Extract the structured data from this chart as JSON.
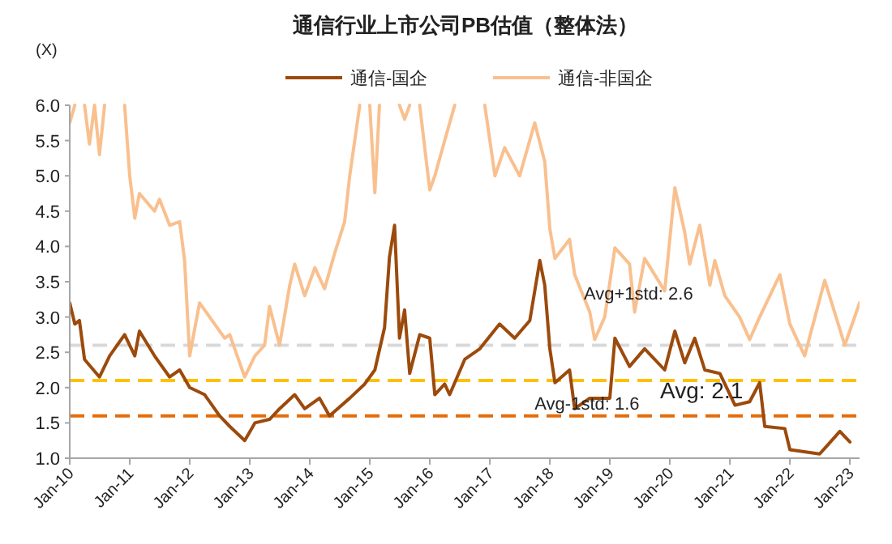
{
  "chart_data": {
    "type": "line",
    "title": "通信行业上市公司PB估值（整体法）",
    "ylabel": "(X)",
    "legend": "top",
    "xlim": [
      "2010-01",
      "2023-03"
    ],
    "xticks": [
      {
        "value": "2010-01",
        "label": "Jan-10"
      },
      {
        "value": "2011-01",
        "label": "Jan-11"
      },
      {
        "value": "2012-01",
        "label": "Jan-12"
      },
      {
        "value": "2013-01",
        "label": "Jan-13"
      },
      {
        "value": "2014-01",
        "label": "Jan-14"
      },
      {
        "value": "2015-01",
        "label": "Jan-15"
      },
      {
        "value": "2016-01",
        "label": "Jan-16"
      },
      {
        "value": "2017-01",
        "label": "Jan-17"
      },
      {
        "value": "2018-01",
        "label": "Jan-18"
      },
      {
        "value": "2019-01",
        "label": "Jan-19"
      },
      {
        "value": "2020-01",
        "label": "Jan-20"
      },
      {
        "value": "2021-01",
        "label": "Jan-21"
      },
      {
        "value": "2022-01",
        "label": "Jan-22"
      },
      {
        "value": "2023-01",
        "label": "Jan-23"
      }
    ],
    "ylim": [
      1,
      6
    ],
    "yticks": [
      {
        "value": 1,
        "label": "1.0"
      },
      {
        "value": 1.5,
        "label": "1.5"
      },
      {
        "value": 2,
        "label": "2.0"
      },
      {
        "value": 2.5,
        "label": "2.5"
      },
      {
        "value": 3,
        "label": "3.0"
      },
      {
        "value": 3.5,
        "label": "3.5"
      },
      {
        "value": 4,
        "label": "4.0"
      },
      {
        "value": 4.5,
        "label": "4.5"
      },
      {
        "value": 5,
        "label": "5.0"
      },
      {
        "value": 5.5,
        "label": "5.5"
      },
      {
        "value": 6,
        "label": "6.0"
      }
    ],
    "ref_lines": [
      {
        "axis": "y",
        "value": 2.6,
        "label": "Avg+1std: 2.6",
        "color": "#d9d9d9",
        "line_style": "dashed"
      },
      {
        "axis": "y",
        "value": 2.1,
        "label": "Avg: 2.1",
        "color": "#ffc000",
        "line_style": "dashed"
      },
      {
        "axis": "y",
        "value": 1.6,
        "label": "Avg-1std: 1.6",
        "color": "#e46c0a",
        "line_style": "dashed"
      }
    ],
    "series": [
      {
        "name": "通信-国企",
        "color": "#9c4a0c",
        "x": [
          "2010-01",
          "2010-02",
          "2010-03",
          "2010-04",
          "2010-07",
          "2010-09",
          "2010-12",
          "2011-02",
          "2011-03",
          "2011-06",
          "2011-09",
          "2011-11",
          "2012-01",
          "2012-04",
          "2012-07",
          "2012-09",
          "2012-12",
          "2013-02",
          "2013-05",
          "2013-07",
          "2013-10",
          "2013-12",
          "2014-03",
          "2014-05",
          "2014-09",
          "2014-12",
          "2015-02",
          "2015-04",
          "2015-05",
          "2015-06",
          "2015-07",
          "2015-08",
          "2015-09",
          "2015-11",
          "2016-01",
          "2016-02",
          "2016-04",
          "2016-05",
          "2016-08",
          "2016-11",
          "2017-03",
          "2017-06",
          "2017-09",
          "2017-11",
          "2017-12",
          "2018-01",
          "2018-02",
          "2018-05",
          "2018-06",
          "2018-09",
          "2019-01",
          "2019-02",
          "2019-05",
          "2019-08",
          "2019-12",
          "2020-02",
          "2020-04",
          "2020-06",
          "2020-08",
          "2020-11",
          "2021-02",
          "2021-05",
          "2021-07",
          "2021-08",
          "2021-12",
          "2022-01",
          "2022-07",
          "2022-11",
          "2023-01"
        ],
        "values": [
          3.2,
          2.9,
          2.95,
          2.4,
          2.15,
          2.45,
          2.75,
          2.45,
          2.8,
          2.45,
          2.15,
          2.25,
          2.0,
          1.9,
          1.6,
          1.45,
          1.25,
          1.5,
          1.55,
          1.7,
          1.9,
          1.7,
          1.85,
          1.6,
          1.85,
          2.05,
          2.25,
          2.85,
          3.85,
          4.3,
          2.7,
          3.1,
          2.2,
          2.75,
          2.7,
          1.9,
          2.05,
          1.9,
          2.4,
          2.55,
          2.9,
          2.7,
          2.95,
          3.8,
          3.45,
          2.55,
          2.07,
          2.25,
          1.7,
          1.85,
          1.85,
          2.7,
          2.3,
          2.55,
          2.25,
          2.8,
          2.35,
          2.7,
          2.25,
          2.2,
          1.75,
          1.8,
          2.07,
          1.45,
          1.42,
          1.12,
          1.06,
          1.38,
          1.23
        ]
      },
      {
        "name": "通信-非国企",
        "color": "#f9c08f",
        "x": [
          "2010-01",
          "2010-02",
          "2010-03",
          "2010-04",
          "2010-05",
          "2010-06",
          "2010-07",
          "2010-08",
          "2010-10",
          "2010-12",
          "2011-01",
          "2011-02",
          "2011-03",
          "2011-06",
          "2011-07",
          "2011-09",
          "2011-11",
          "2011-12",
          "2012-01",
          "2012-03",
          "2012-06",
          "2012-08",
          "2012-09",
          "2012-10",
          "2012-12",
          "2013-02",
          "2013-04",
          "2013-05",
          "2013-07",
          "2013-09",
          "2013-10",
          "2013-12",
          "2014-02",
          "2014-04",
          "2014-06",
          "2014-08",
          "2014-09",
          "2014-11",
          "2014-12",
          "2015-01",
          "2015-02",
          "2015-03",
          "2015-04",
          "2015-07",
          "2015-08",
          "2015-09",
          "2015-10",
          "2015-11",
          "2016-01",
          "2016-02",
          "2016-04",
          "2016-06",
          "2016-07",
          "2016-10",
          "2016-12",
          "2017-02",
          "2017-04",
          "2017-07",
          "2017-10",
          "2017-12",
          "2018-01",
          "2018-02",
          "2018-05",
          "2018-06",
          "2018-09",
          "2018-10",
          "2018-12",
          "2019-02",
          "2019-05",
          "2019-06",
          "2019-08",
          "2019-12",
          "2020-02",
          "2020-04",
          "2020-05",
          "2020-07",
          "2020-09",
          "2020-10",
          "2020-12",
          "2021-03",
          "2021-05",
          "2021-07",
          "2021-11",
          "2022-01",
          "2022-04",
          "2022-08",
          "2022-12",
          "2023-03"
        ],
        "values": [
          5.75,
          6.0,
          null,
          6.0,
          5.45,
          6.0,
          5.3,
          6.0,
          null,
          6.0,
          5.0,
          4.4,
          4.75,
          4.5,
          4.67,
          4.3,
          4.35,
          3.8,
          2.45,
          3.2,
          2.9,
          2.7,
          2.75,
          2.55,
          2.15,
          2.45,
          2.6,
          3.15,
          2.6,
          3.45,
          3.75,
          3.3,
          3.7,
          3.4,
          3.9,
          4.35,
          5.0,
          6.0,
          null,
          6.0,
          4.76,
          6.0,
          null,
          6.0,
          5.8,
          6.0,
          null,
          6.0,
          4.8,
          5.0,
          5.5,
          6.0,
          null,
          null,
          6.0,
          5.0,
          5.4,
          5.0,
          5.75,
          5.2,
          4.25,
          3.83,
          4.1,
          3.6,
          3.07,
          2.68,
          3.0,
          3.98,
          3.75,
          3.07,
          3.83,
          3.37,
          4.83,
          4.2,
          3.75,
          4.3,
          3.45,
          3.8,
          3.3,
          3.0,
          2.68,
          3.0,
          3.6,
          2.9,
          2.45,
          3.52,
          2.6,
          3.2
        ]
      }
    ]
  }
}
